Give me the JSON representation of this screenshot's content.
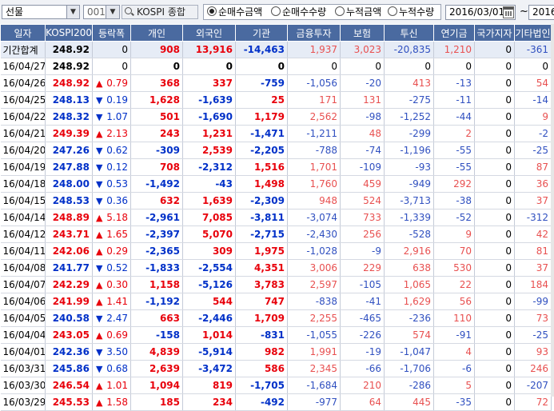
{
  "toolbar": {
    "type_select": "선물",
    "code_value": "001",
    "market_label": "KOSPI 종합",
    "radios": [
      {
        "label": "순매수금액",
        "checked": true
      },
      {
        "label": "순매수수량",
        "checked": false
      },
      {
        "label": "누적금액",
        "checked": false
      },
      {
        "label": "누적수량",
        "checked": false
      }
    ],
    "start_date": "2016/03/01",
    "tilde": "~",
    "end_date": "2016"
  },
  "table": {
    "headers": [
      "일자",
      "KOSPI200",
      "등락폭",
      "개인",
      "외국인",
      "기관",
      "금융투자",
      "보험",
      "투신",
      "연기금",
      "국가지자",
      "기타법인"
    ],
    "rows": [
      {
        "date": "기간합계",
        "kospi": "248.92",
        "kc": "black",
        "dir": "",
        "chg": "0",
        "cc": "black",
        "indiv": "908",
        "ic": "red",
        "foreign": "13,916",
        "fc": "red",
        "inst": "-14,463",
        "nc": "blue",
        "fin": "1,937",
        "fic": "lred",
        "ins": "3,023",
        "isc": "lred",
        "trust": "-20,835",
        "tc": "lblue",
        "pension": "1,210",
        "pc": "lred",
        "nat": "0",
        "nac": "black",
        "etc": "-361",
        "ec": "lblue"
      },
      {
        "date": "16/04/27",
        "kospi": "248.92",
        "kc": "black",
        "dir": "",
        "chg": "0",
        "cc": "black",
        "indiv": "0",
        "ic": "black",
        "foreign": "0",
        "fc": "black",
        "inst": "0",
        "nc": "black",
        "fin": "0",
        "fic": "black",
        "ins": "0",
        "isc": "black",
        "trust": "0",
        "tc": "black",
        "pension": "0",
        "pc": "black",
        "nat": "0",
        "nac": "black",
        "etc": "0",
        "ec": "black"
      },
      {
        "date": "16/04/26",
        "kospi": "248.92",
        "kc": "red",
        "dir": "up",
        "chg": "0.79",
        "cc": "red",
        "indiv": "368",
        "ic": "red",
        "foreign": "337",
        "fc": "red",
        "inst": "-759",
        "nc": "blue",
        "fin": "-1,056",
        "fic": "lblue",
        "ins": "-20",
        "isc": "lblue",
        "trust": "413",
        "tc": "lred",
        "pension": "-13",
        "pc": "lblue",
        "nat": "0",
        "nac": "black",
        "etc": "54",
        "ec": "lred"
      },
      {
        "date": "16/04/25",
        "kospi": "248.13",
        "kc": "blue",
        "dir": "dn",
        "chg": "0.19",
        "cc": "blue",
        "indiv": "1,628",
        "ic": "red",
        "foreign": "-1,639",
        "fc": "blue",
        "inst": "25",
        "nc": "red",
        "fin": "171",
        "fic": "lred",
        "ins": "131",
        "isc": "lred",
        "trust": "-275",
        "tc": "lblue",
        "pension": "-11",
        "pc": "lblue",
        "nat": "0",
        "nac": "black",
        "etc": "-14",
        "ec": "lblue"
      },
      {
        "date": "16/04/22",
        "kospi": "248.32",
        "kc": "blue",
        "dir": "dn",
        "chg": "1.07",
        "cc": "blue",
        "indiv": "501",
        "ic": "red",
        "foreign": "-1,690",
        "fc": "blue",
        "inst": "1,179",
        "nc": "red",
        "fin": "2,562",
        "fic": "lred",
        "ins": "-98",
        "isc": "lblue",
        "trust": "-1,252",
        "tc": "lblue",
        "pension": "-44",
        "pc": "lblue",
        "nat": "0",
        "nac": "black",
        "etc": "9",
        "ec": "lred"
      },
      {
        "date": "16/04/21",
        "kospi": "249.39",
        "kc": "red",
        "dir": "up",
        "chg": "2.13",
        "cc": "red",
        "indiv": "243",
        "ic": "red",
        "foreign": "1,231",
        "fc": "red",
        "inst": "-1,471",
        "nc": "blue",
        "fin": "-1,211",
        "fic": "lblue",
        "ins": "48",
        "isc": "lred",
        "trust": "-299",
        "tc": "lblue",
        "pension": "2",
        "pc": "lred",
        "nat": "0",
        "nac": "black",
        "etc": "-2",
        "ec": "lblue"
      },
      {
        "date": "16/04/20",
        "kospi": "247.26",
        "kc": "blue",
        "dir": "dn",
        "chg": "0.62",
        "cc": "blue",
        "indiv": "-309",
        "ic": "blue",
        "foreign": "2,539",
        "fc": "red",
        "inst": "-2,205",
        "nc": "blue",
        "fin": "-788",
        "fic": "lblue",
        "ins": "-74",
        "isc": "lblue",
        "trust": "-1,196",
        "tc": "lblue",
        "pension": "-55",
        "pc": "lblue",
        "nat": "0",
        "nac": "black",
        "etc": "-25",
        "ec": "lblue"
      },
      {
        "date": "16/04/19",
        "kospi": "247.88",
        "kc": "blue",
        "dir": "dn",
        "chg": "0.12",
        "cc": "blue",
        "indiv": "708",
        "ic": "red",
        "foreign": "-2,312",
        "fc": "blue",
        "inst": "1,516",
        "nc": "red",
        "fin": "1,701",
        "fic": "lred",
        "ins": "-109",
        "isc": "lblue",
        "trust": "-93",
        "tc": "lblue",
        "pension": "-55",
        "pc": "lblue",
        "nat": "0",
        "nac": "black",
        "etc": "87",
        "ec": "lred"
      },
      {
        "date": "16/04/18",
        "kospi": "248.00",
        "kc": "blue",
        "dir": "dn",
        "chg": "0.53",
        "cc": "blue",
        "indiv": "-1,492",
        "ic": "blue",
        "foreign": "-43",
        "fc": "blue",
        "inst": "1,498",
        "nc": "red",
        "fin": "1,760",
        "fic": "lred",
        "ins": "459",
        "isc": "lred",
        "trust": "-949",
        "tc": "lblue",
        "pension": "292",
        "pc": "lred",
        "nat": "0",
        "nac": "black",
        "etc": "36",
        "ec": "lred"
      },
      {
        "date": "16/04/15",
        "kospi": "248.53",
        "kc": "blue",
        "dir": "dn",
        "chg": "0.36",
        "cc": "blue",
        "indiv": "632",
        "ic": "red",
        "foreign": "1,639",
        "fc": "red",
        "inst": "-2,309",
        "nc": "blue",
        "fin": "948",
        "fic": "lred",
        "ins": "524",
        "isc": "lred",
        "trust": "-3,713",
        "tc": "lblue",
        "pension": "-38",
        "pc": "lblue",
        "nat": "0",
        "nac": "black",
        "etc": "37",
        "ec": "lred"
      },
      {
        "date": "16/04/14",
        "kospi": "248.89",
        "kc": "red",
        "dir": "up",
        "chg": "5.18",
        "cc": "red",
        "indiv": "-2,961",
        "ic": "blue",
        "foreign": "7,085",
        "fc": "red",
        "inst": "-3,811",
        "nc": "blue",
        "fin": "-3,074",
        "fic": "lblue",
        "ins": "733",
        "isc": "lred",
        "trust": "-1,339",
        "tc": "lblue",
        "pension": "-52",
        "pc": "lblue",
        "nat": "0",
        "nac": "black",
        "etc": "-312",
        "ec": "lblue"
      },
      {
        "date": "16/04/12",
        "kospi": "243.71",
        "kc": "red",
        "dir": "up",
        "chg": "1.65",
        "cc": "red",
        "indiv": "-2,397",
        "ic": "blue",
        "foreign": "5,070",
        "fc": "red",
        "inst": "-2,715",
        "nc": "blue",
        "fin": "-2,430",
        "fic": "lblue",
        "ins": "256",
        "isc": "lred",
        "trust": "-528",
        "tc": "lblue",
        "pension": "9",
        "pc": "lred",
        "nat": "0",
        "nac": "black",
        "etc": "42",
        "ec": "lred"
      },
      {
        "date": "16/04/11",
        "kospi": "242.06",
        "kc": "red",
        "dir": "up",
        "chg": "0.29",
        "cc": "red",
        "indiv": "-2,365",
        "ic": "blue",
        "foreign": "309",
        "fc": "red",
        "inst": "1,975",
        "nc": "red",
        "fin": "-1,028",
        "fic": "lblue",
        "ins": "-9",
        "isc": "lblue",
        "trust": "2,916",
        "tc": "lred",
        "pension": "70",
        "pc": "lred",
        "nat": "0",
        "nac": "black",
        "etc": "81",
        "ec": "lred"
      },
      {
        "date": "16/04/08",
        "kospi": "241.77",
        "kc": "blue",
        "dir": "dn",
        "chg": "0.52",
        "cc": "blue",
        "indiv": "-1,833",
        "ic": "blue",
        "foreign": "-2,554",
        "fc": "blue",
        "inst": "4,351",
        "nc": "red",
        "fin": "3,006",
        "fic": "lred",
        "ins": "229",
        "isc": "lred",
        "trust": "638",
        "tc": "lred",
        "pension": "530",
        "pc": "lred",
        "nat": "0",
        "nac": "black",
        "etc": "37",
        "ec": "lred"
      },
      {
        "date": "16/04/07",
        "kospi": "242.29",
        "kc": "red",
        "dir": "up",
        "chg": "0.30",
        "cc": "red",
        "indiv": "1,158",
        "ic": "red",
        "foreign": "-5,126",
        "fc": "blue",
        "inst": "3,783",
        "nc": "red",
        "fin": "2,597",
        "fic": "lred",
        "ins": "-105",
        "isc": "lblue",
        "trust": "1,065",
        "tc": "lred",
        "pension": "22",
        "pc": "lred",
        "nat": "0",
        "nac": "black",
        "etc": "184",
        "ec": "lred"
      },
      {
        "date": "16/04/06",
        "kospi": "241.99",
        "kc": "red",
        "dir": "up",
        "chg": "1.41",
        "cc": "red",
        "indiv": "-1,192",
        "ic": "blue",
        "foreign": "544",
        "fc": "red",
        "inst": "747",
        "nc": "red",
        "fin": "-838",
        "fic": "lblue",
        "ins": "-41",
        "isc": "lblue",
        "trust": "1,629",
        "tc": "lred",
        "pension": "56",
        "pc": "lred",
        "nat": "0",
        "nac": "black",
        "etc": "-99",
        "ec": "lblue"
      },
      {
        "date": "16/04/05",
        "kospi": "240.58",
        "kc": "blue",
        "dir": "dn",
        "chg": "2.47",
        "cc": "blue",
        "indiv": "663",
        "ic": "red",
        "foreign": "-2,446",
        "fc": "blue",
        "inst": "1,709",
        "nc": "red",
        "fin": "2,255",
        "fic": "lred",
        "ins": "-465",
        "isc": "lblue",
        "trust": "-236",
        "tc": "lblue",
        "pension": "110",
        "pc": "lred",
        "nat": "0",
        "nac": "black",
        "etc": "73",
        "ec": "lred"
      },
      {
        "date": "16/04/04",
        "kospi": "243.05",
        "kc": "red",
        "dir": "up",
        "chg": "0.69",
        "cc": "red",
        "indiv": "-158",
        "ic": "blue",
        "foreign": "1,014",
        "fc": "red",
        "inst": "-831",
        "nc": "blue",
        "fin": "-1,055",
        "fic": "lblue",
        "ins": "-226",
        "isc": "lblue",
        "trust": "574",
        "tc": "lred",
        "pension": "-91",
        "pc": "lblue",
        "nat": "0",
        "nac": "black",
        "etc": "-25",
        "ec": "lblue"
      },
      {
        "date": "16/04/01",
        "kospi": "242.36",
        "kc": "blue",
        "dir": "dn",
        "chg": "3.50",
        "cc": "blue",
        "indiv": "4,839",
        "ic": "red",
        "foreign": "-5,914",
        "fc": "blue",
        "inst": "982",
        "nc": "red",
        "fin": "1,991",
        "fic": "lred",
        "ins": "-19",
        "isc": "lblue",
        "trust": "-1,047",
        "tc": "lblue",
        "pension": "4",
        "pc": "lred",
        "nat": "0",
        "nac": "black",
        "etc": "93",
        "ec": "lred"
      },
      {
        "date": "16/03/31",
        "kospi": "245.86",
        "kc": "blue",
        "dir": "dn",
        "chg": "0.68",
        "cc": "blue",
        "indiv": "2,639",
        "ic": "red",
        "foreign": "-3,472",
        "fc": "blue",
        "inst": "586",
        "nc": "red",
        "fin": "2,345",
        "fic": "lred",
        "ins": "-66",
        "isc": "lblue",
        "trust": "-1,706",
        "tc": "lblue",
        "pension": "-6",
        "pc": "lblue",
        "nat": "0",
        "nac": "black",
        "etc": "246",
        "ec": "lred"
      },
      {
        "date": "16/03/30",
        "kospi": "246.54",
        "kc": "red",
        "dir": "up",
        "chg": "1.01",
        "cc": "red",
        "indiv": "1,094",
        "ic": "red",
        "foreign": "819",
        "fc": "red",
        "inst": "-1,705",
        "nc": "blue",
        "fin": "-1,684",
        "fic": "lblue",
        "ins": "210",
        "isc": "lred",
        "trust": "-286",
        "tc": "lblue",
        "pension": "5",
        "pc": "lred",
        "nat": "0",
        "nac": "black",
        "etc": "-207",
        "ec": "lblue"
      },
      {
        "date": "16/03/29",
        "kospi": "245.53",
        "kc": "red",
        "dir": "up",
        "chg": "1.58",
        "cc": "red",
        "indiv": "185",
        "ic": "red",
        "foreign": "234",
        "fc": "red",
        "inst": "-492",
        "nc": "blue",
        "fin": "-977",
        "fic": "lblue",
        "ins": "64",
        "isc": "lred",
        "trust": "445",
        "tc": "lred",
        "pension": "-35",
        "pc": "lblue",
        "nat": "0",
        "nac": "black",
        "etc": "72",
        "ec": "lred"
      }
    ]
  }
}
